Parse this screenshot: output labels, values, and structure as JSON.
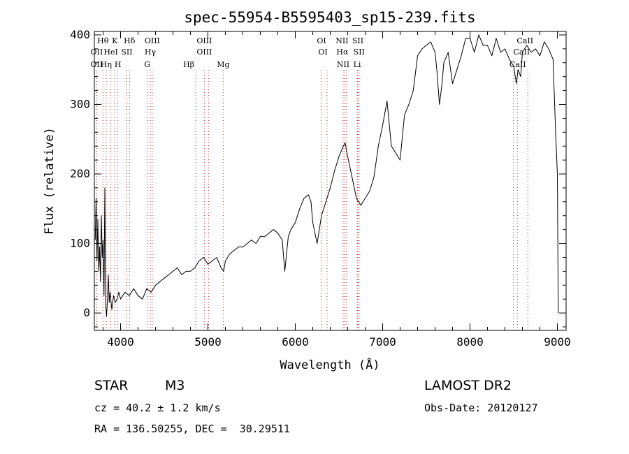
{
  "chart_data": {
    "type": "line",
    "title": "spec-55954-B5595403_sp15-239.fits",
    "xlabel": "Wavelength (Å)",
    "ylabel": "Flux (relative)",
    "xlim": [
      3700,
      9100
    ],
    "ylim": [
      -25,
      405
    ],
    "xticks": [
      4000,
      5000,
      6000,
      7000,
      8000,
      9000
    ],
    "yticks": [
      0,
      100,
      200,
      300,
      400
    ],
    "grid": false,
    "series": [
      {
        "x": [
          3710,
          3720,
          3730,
          3740,
          3750,
          3760,
          3770,
          3780,
          3790,
          3800,
          3810,
          3820,
          3830,
          3840,
          3850,
          3860,
          3870,
          3880,
          3900,
          3920,
          3940,
          3960,
          3980,
          4000,
          4050,
          4100,
          4150,
          4200,
          4250,
          4300,
          4350,
          4400,
          4450,
          4500,
          4550,
          4600,
          4650,
          4700,
          4750,
          4800,
          4850,
          4900,
          4950,
          5000,
          5050,
          5100,
          5150,
          5180,
          5200,
          5250,
          5300,
          5350,
          5400,
          5450,
          5500,
          5550,
          5600,
          5650,
          5700,
          5750,
          5800,
          5850,
          5880,
          5900,
          5920,
          5950,
          6000,
          6050,
          6100,
          6150,
          6180,
          6200,
          6250,
          6300,
          6350,
          6400,
          6450,
          6500,
          6550,
          6570,
          6600,
          6650,
          6700,
          6750,
          6800,
          6850,
          6900,
          6950,
          7000,
          7050,
          7100,
          7150,
          7200,
          7250,
          7300,
          7350,
          7400,
          7450,
          7500,
          7550,
          7600,
          7620,
          7650,
          7680,
          7700,
          7750,
          7800,
          7850,
          7900,
          7950,
          8000,
          8050,
          8100,
          8150,
          8200,
          8250,
          8300,
          8350,
          8400,
          8450,
          8500,
          8530,
          8550,
          8580,
          8600,
          8650,
          8700,
          8750,
          8800,
          8850,
          8900,
          8950,
          8980,
          9000,
          9010
        ],
        "y": [
          105,
          165,
          75,
          135,
          60,
          95,
          45,
          140,
          80,
          105,
          25,
          180,
          10,
          -5,
          20,
          55,
          15,
          30,
          5,
          25,
          15,
          20,
          30,
          20,
          30,
          25,
          35,
          25,
          20,
          35,
          30,
          40,
          45,
          50,
          55,
          60,
          65,
          55,
          60,
          60,
          65,
          75,
          80,
          70,
          75,
          80,
          65,
          60,
          75,
          85,
          90,
          95,
          95,
          100,
          105,
          100,
          110,
          110,
          115,
          120,
          115,
          105,
          60,
          85,
          110,
          120,
          130,
          150,
          165,
          170,
          160,
          130,
          100,
          140,
          160,
          180,
          205,
          225,
          240,
          245,
          225,
          195,
          165,
          155,
          165,
          175,
          195,
          240,
          270,
          305,
          240,
          230,
          220,
          285,
          300,
          320,
          370,
          380,
          385,
          390,
          375,
          350,
          300,
          330,
          360,
          375,
          330,
          350,
          370,
          395,
          395,
          375,
          400,
          385,
          385,
          370,
          395,
          375,
          380,
          365,
          355,
          330,
          350,
          340,
          375,
          385,
          375,
          380,
          370,
          390,
          380,
          365,
          260,
          200,
          0
        ]
      }
    ],
    "spectral_lines": [
      {
        "label": "Hδ",
        "x": 4102,
        "row": 0,
        "dx": 0,
        "tag": "Hdelta"
      },
      {
        "label": "K",
        "x": 3934,
        "row": 0,
        "dx": 0,
        "tag": "K"
      },
      {
        "label": "Hθ",
        "x": 3798,
        "row": 0,
        "dx": 0,
        "tag": "Htheta"
      },
      {
        "label": "OIII",
        "x": 4363,
        "row": 0,
        "dx": 0,
        "tag": "OIII-4363"
      },
      {
        "label": "OIII",
        "x": 4959,
        "row": 0,
        "dx": 0,
        "tag": "OIII-4959"
      },
      {
        "label": "OI",
        "x": 6300,
        "row": 0,
        "dx": 0,
        "tag": "OI-6300"
      },
      {
        "label": "NII",
        "x": 6583,
        "row": 0,
        "dx": -6,
        "tag": "NII-6583"
      },
      {
        "label": "SII",
        "x": 6716,
        "row": 0,
        "dx": 0,
        "tag": "SII-6716"
      },
      {
        "label": "CaII",
        "x": 8662,
        "row": 0,
        "dx": -4,
        "tag": "CaII-8662"
      },
      {
        "label": "OII",
        "x": 3727,
        "row": 1,
        "dx": 0,
        "tag": "OII-3727"
      },
      {
        "label": "HeI",
        "x": 3889,
        "row": 1,
        "dx": 0,
        "tag": "HeI"
      },
      {
        "label": "SII",
        "x": 4072,
        "row": 1,
        "dx": 0,
        "tag": "SII-4072"
      },
      {
        "label": "Hγ",
        "x": 4340,
        "row": 1,
        "dx": 0,
        "tag": "Hgamma"
      },
      {
        "label": "OIII",
        "x": 5007,
        "row": 1,
        "dx": -6,
        "tag": "OIII-5007"
      },
      {
        "label": "OI",
        "x": 6364,
        "row": 1,
        "dx": -6,
        "tag": "OI-6364"
      },
      {
        "label": "Hα",
        "x": 6563,
        "row": 1,
        "dx": -3,
        "tag": "Halpha"
      },
      {
        "label": "SII",
        "x": 6731,
        "row": 1,
        "dx": 0,
        "tag": "SII-6731"
      },
      {
        "label": "CaII",
        "x": 8542,
        "row": 1,
        "dx": 6,
        "tag": "CaII-8542"
      },
      {
        "label": "OII",
        "x": 3727,
        "row": 2,
        "dx": 0,
        "tag": "OII-3727b"
      },
      {
        "label": "Hη",
        "x": 3835,
        "row": 2,
        "dx": 0,
        "tag": "Heta"
      },
      {
        "label": "H",
        "x": 3969,
        "row": 2,
        "dx": 0,
        "tag": "H"
      },
      {
        "label": "G",
        "x": 4305,
        "row": 2,
        "dx": 0,
        "tag": "G"
      },
      {
        "label": "Hβ",
        "x": 4861,
        "row": 2,
        "dx": -10,
        "tag": "Hbeta"
      },
      {
        "label": "Mg",
        "x": 5175,
        "row": 2,
        "dx": 0,
        "tag": "Mg"
      },
      {
        "label": "NII",
        "x": 6548,
        "row": 2,
        "dx": 0,
        "tag": "NII-6548"
      },
      {
        "label": "Li",
        "x": 6708,
        "row": 2,
        "dx": 0,
        "tag": "Li"
      },
      {
        "label": "CaII",
        "x": 8498,
        "row": 2,
        "dx": 6,
        "tag": "CaII-8498"
      }
    ]
  },
  "info": {
    "class": "STAR",
    "subclass": "M3",
    "survey": "LAMOST DR2",
    "cz": "cz = 40.2 ± 1.2 km/s",
    "obs_date": "Obs-Date: 20120127",
    "coords": "RA = 136.50255, DEC =  30.29511"
  },
  "colors": {
    "line": "#000000",
    "marker": "#cc2222"
  }
}
